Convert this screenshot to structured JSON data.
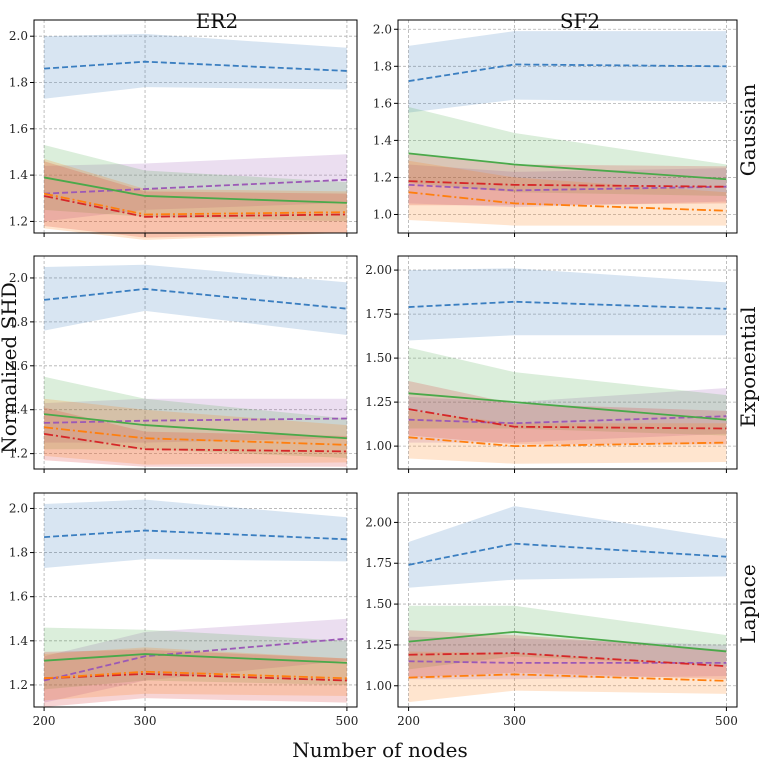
{
  "figure": {
    "ylabel": "Normalized SHD",
    "xlabel": "Number of nodes",
    "columns": [
      "ER2",
      "SF2"
    ],
    "rows": [
      "Gaussian",
      "Exponential",
      "Laplace"
    ]
  },
  "colors": {
    "blue": "#3a7ec0",
    "purple": "#9b59b6",
    "green": "#4aa94a",
    "red": "#d62728",
    "orange": "#ff7f0e"
  },
  "chart_data": [
    {
      "type": "line",
      "row": "Gaussian",
      "col": "ER2",
      "x": [
        200,
        300,
        500
      ],
      "xticks": [
        200,
        300,
        500
      ],
      "xlim": [
        190,
        510
      ],
      "ylim": [
        1.15,
        2.07
      ],
      "yticks": [
        1.2,
        1.4,
        1.6,
        1.8,
        2.0
      ],
      "ytick_labels": [
        "1.2",
        "1.4",
        "1.6",
        "1.8",
        "2.0"
      ],
      "series": [
        {
          "color": "blue",
          "style": "dashed",
          "values": [
            1.86,
            1.89,
            1.85
          ],
          "lower": [
            1.73,
            1.78,
            1.77
          ],
          "upper": [
            2.0,
            2.01,
            1.95
          ]
        },
        {
          "color": "purple",
          "style": "dashed",
          "values": [
            1.32,
            1.34,
            1.38
          ],
          "lower": [
            1.2,
            1.25,
            1.28
          ],
          "upper": [
            1.44,
            1.45,
            1.49
          ]
        },
        {
          "color": "green",
          "style": "solid",
          "values": [
            1.39,
            1.31,
            1.28
          ],
          "lower": [
            1.25,
            1.22,
            1.2
          ],
          "upper": [
            1.53,
            1.42,
            1.37
          ]
        },
        {
          "color": "red",
          "style": "dashdot",
          "values": [
            1.31,
            1.22,
            1.23
          ],
          "lower": [
            1.18,
            1.13,
            1.15
          ],
          "upper": [
            1.46,
            1.33,
            1.32
          ]
        },
        {
          "color": "orange",
          "style": "dashdot",
          "values": [
            1.32,
            1.23,
            1.24
          ],
          "lower": [
            1.17,
            1.12,
            1.15
          ],
          "upper": [
            1.47,
            1.34,
            1.33
          ]
        }
      ]
    },
    {
      "type": "line",
      "row": "Gaussian",
      "col": "SF2",
      "x": [
        200,
        300,
        500
      ],
      "xticks": [
        200,
        300,
        500
      ],
      "xlim": [
        190,
        510
      ],
      "ylim": [
        0.9,
        2.05
      ],
      "yticks": [
        1.0,
        1.2,
        1.4,
        1.6,
        1.8,
        2.0
      ],
      "ytick_labels": [
        "1.0",
        "1.2",
        "1.4",
        "1.6",
        "1.8",
        "2.0"
      ],
      "series": [
        {
          "color": "blue",
          "style": "dashed",
          "values": [
            1.72,
            1.81,
            1.8
          ],
          "lower": [
            1.55,
            1.62,
            1.61
          ],
          "upper": [
            1.91,
            1.99,
            1.99
          ]
        },
        {
          "color": "purple",
          "style": "dashed",
          "values": [
            1.16,
            1.13,
            1.15
          ],
          "lower": [
            1.06,
            1.04,
            1.07
          ],
          "upper": [
            1.27,
            1.23,
            1.25
          ]
        },
        {
          "color": "green",
          "style": "solid",
          "values": [
            1.33,
            1.27,
            1.19
          ],
          "lower": [
            1.17,
            1.12,
            1.1
          ],
          "upper": [
            1.58,
            1.44,
            1.27
          ]
        },
        {
          "color": "red",
          "style": "dashdot",
          "values": [
            1.18,
            1.16,
            1.15
          ],
          "lower": [
            1.05,
            1.05,
            1.06
          ],
          "upper": [
            1.33,
            1.27,
            1.26
          ]
        },
        {
          "color": "orange",
          "style": "dashdot",
          "values": [
            1.12,
            1.06,
            1.02
          ],
          "lower": [
            0.97,
            0.94,
            0.94
          ],
          "upper": [
            1.29,
            1.2,
            1.12
          ]
        }
      ]
    },
    {
      "type": "line",
      "row": "Exponential",
      "col": "ER2",
      "x": [
        200,
        300,
        500
      ],
      "xticks": [
        200,
        300,
        500
      ],
      "xlim": [
        190,
        510
      ],
      "ylim": [
        1.13,
        2.1
      ],
      "yticks": [
        1.2,
        1.4,
        1.6,
        1.8,
        2.0
      ],
      "ytick_labels": [
        "1.2",
        "1.4",
        "1.6",
        "1.8",
        "2.0"
      ],
      "series": [
        {
          "color": "blue",
          "style": "dashed",
          "values": [
            1.9,
            1.95,
            1.86
          ],
          "lower": [
            1.76,
            1.85,
            1.74
          ],
          "upper": [
            2.05,
            2.06,
            1.98
          ]
        },
        {
          "color": "purple",
          "style": "dashed",
          "values": [
            1.34,
            1.35,
            1.36
          ],
          "lower": [
            1.25,
            1.25,
            1.27
          ],
          "upper": [
            1.43,
            1.45,
            1.45
          ]
        },
        {
          "color": "green",
          "style": "solid",
          "values": [
            1.38,
            1.33,
            1.27
          ],
          "lower": [
            1.22,
            1.22,
            1.18
          ],
          "upper": [
            1.55,
            1.45,
            1.36
          ]
        },
        {
          "color": "red",
          "style": "dashdot",
          "values": [
            1.29,
            1.22,
            1.21
          ],
          "lower": [
            1.17,
            1.14,
            1.14
          ],
          "upper": [
            1.41,
            1.3,
            1.28
          ]
        },
        {
          "color": "orange",
          "style": "dashdot",
          "values": [
            1.32,
            1.27,
            1.24
          ],
          "lower": [
            1.19,
            1.15,
            1.16
          ],
          "upper": [
            1.45,
            1.4,
            1.33
          ]
        }
      ]
    },
    {
      "type": "line",
      "row": "Exponential",
      "col": "SF2",
      "x": [
        200,
        300,
        500
      ],
      "xticks": [
        200,
        300,
        500
      ],
      "xlim": [
        190,
        510
      ],
      "ylim": [
        0.87,
        2.08
      ],
      "yticks": [
        1.0,
        1.25,
        1.5,
        1.75,
        2.0
      ],
      "ytick_labels": [
        "1.00",
        "1.25",
        "1.50",
        "1.75",
        "2.00"
      ],
      "series": [
        {
          "color": "blue",
          "style": "dashed",
          "values": [
            1.79,
            1.82,
            1.78
          ],
          "lower": [
            1.6,
            1.63,
            1.63
          ],
          "upper": [
            2.0,
            2.01,
            1.93
          ]
        },
        {
          "color": "purple",
          "style": "dashed",
          "values": [
            1.15,
            1.13,
            1.17
          ],
          "lower": [
            1.02,
            1.02,
            1.07
          ],
          "upper": [
            1.28,
            1.25,
            1.33
          ]
        },
        {
          "color": "green",
          "style": "solid",
          "values": [
            1.3,
            1.25,
            1.15
          ],
          "lower": [
            1.1,
            1.1,
            1.06
          ],
          "upper": [
            1.56,
            1.42,
            1.29
          ]
        },
        {
          "color": "red",
          "style": "dashdot",
          "values": [
            1.21,
            1.11,
            1.1
          ],
          "lower": [
            1.06,
            1.01,
            1.01
          ],
          "upper": [
            1.37,
            1.24,
            1.2
          ]
        },
        {
          "color": "orange",
          "style": "dashdot",
          "values": [
            1.05,
            1.0,
            1.02
          ],
          "lower": [
            0.93,
            0.9,
            0.91
          ],
          "upper": [
            1.2,
            1.13,
            1.13
          ]
        }
      ]
    },
    {
      "type": "line",
      "row": "Laplace",
      "col": "ER2",
      "x": [
        200,
        300,
        500
      ],
      "xticks": [
        200,
        300,
        500
      ],
      "xlim": [
        190,
        510
      ],
      "ylim": [
        1.1,
        2.07
      ],
      "yticks": [
        1.2,
        1.4,
        1.6,
        1.8,
        2.0
      ],
      "ytick_labels": [
        "1.2",
        "1.4",
        "1.6",
        "1.8",
        "2.0"
      ],
      "series": [
        {
          "color": "blue",
          "style": "dashed",
          "values": [
            1.87,
            1.9,
            1.86
          ],
          "lower": [
            1.73,
            1.77,
            1.76
          ],
          "upper": [
            2.02,
            2.04,
            1.96
          ]
        },
        {
          "color": "purple",
          "style": "dashed",
          "values": [
            1.22,
            1.33,
            1.41
          ],
          "lower": [
            1.12,
            1.22,
            1.31
          ],
          "upper": [
            1.33,
            1.44,
            1.5
          ]
        },
        {
          "color": "green",
          "style": "solid",
          "values": [
            1.31,
            1.34,
            1.3
          ],
          "lower": [
            1.18,
            1.22,
            1.2
          ],
          "upper": [
            1.46,
            1.45,
            1.4
          ]
        },
        {
          "color": "red",
          "style": "dashdot",
          "values": [
            1.23,
            1.25,
            1.22
          ],
          "lower": [
            1.1,
            1.14,
            1.12
          ],
          "upper": [
            1.35,
            1.36,
            1.32
          ]
        },
        {
          "color": "orange",
          "style": "dashdot",
          "values": [
            1.23,
            1.26,
            1.23
          ],
          "lower": [
            1.13,
            1.16,
            1.15
          ],
          "upper": [
            1.34,
            1.37,
            1.32
          ]
        }
      ]
    },
    {
      "type": "line",
      "row": "Laplace",
      "col": "SF2",
      "x": [
        200,
        300,
        500
      ],
      "xticks": [
        200,
        300,
        500
      ],
      "xlim": [
        190,
        510
      ],
      "ylim": [
        0.87,
        2.18
      ],
      "yticks": [
        1.0,
        1.25,
        1.5,
        1.75,
        2.0
      ],
      "ytick_labels": [
        "1.00",
        "1.25",
        "1.50",
        "1.75",
        "2.00"
      ],
      "series": [
        {
          "color": "blue",
          "style": "dashed",
          "values": [
            1.74,
            1.87,
            1.79
          ],
          "lower": [
            1.6,
            1.65,
            1.67
          ],
          "upper": [
            1.88,
            2.1,
            1.9
          ]
        },
        {
          "color": "purple",
          "style": "dashed",
          "values": [
            1.15,
            1.14,
            1.14
          ],
          "lower": [
            1.04,
            1.04,
            1.06
          ],
          "upper": [
            1.3,
            1.29,
            1.25
          ]
        },
        {
          "color": "green",
          "style": "solid",
          "values": [
            1.27,
            1.33,
            1.21
          ],
          "lower": [
            1.1,
            1.18,
            1.12
          ],
          "upper": [
            1.49,
            1.49,
            1.31
          ]
        },
        {
          "color": "red",
          "style": "dashdot",
          "values": [
            1.19,
            1.2,
            1.12
          ],
          "lower": [
            1.05,
            1.08,
            1.04
          ],
          "upper": [
            1.34,
            1.31,
            1.22
          ]
        },
        {
          "color": "orange",
          "style": "dashdot",
          "values": [
            1.05,
            1.07,
            1.03
          ],
          "lower": [
            0.9,
            0.97,
            0.95
          ],
          "upper": [
            1.21,
            1.2,
            1.12
          ]
        }
      ]
    }
  ]
}
